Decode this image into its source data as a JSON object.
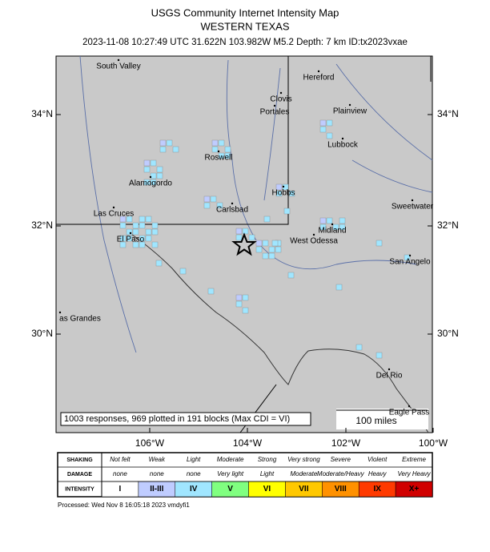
{
  "header": {
    "title": "USGS Community Internet Intensity Map",
    "subtitle": "WESTERN TEXAS",
    "event": "2023-11-08 10:27:49 UTC 31.622N 103.982W M5.2 Depth: 7 km ID:tx2023vxae"
  },
  "map": {
    "lat_labels": [
      "34°N",
      "32°N",
      "30°N"
    ],
    "lon_labels": [
      "106°W",
      "104°W",
      "102°W",
      "100°W"
    ],
    "places": [
      "South Valley",
      "Hereford",
      "Clovis",
      "Portales",
      "Plainview",
      "Lubbock",
      "Roswell",
      "Alamogordo",
      "Hobbs",
      "Sweetwater",
      "Carlsbad",
      "Las Cruces",
      "Midland",
      "El Paso",
      "West Odessa",
      "San Angelo",
      "as Grandes",
      "Del Rio",
      "Eagle Pass"
    ],
    "note": "1003 responses, 969 plotted in 191 blocks (Max CDI = VI)",
    "scale_bar": "100 miles"
  },
  "legend": {
    "rows": [
      {
        "label": "SHAKING",
        "cells": [
          "Not felt",
          "Weak",
          "Light",
          "Moderate",
          "Strong",
          "Very strong",
          "Severe",
          "Violent",
          "Extreme"
        ]
      },
      {
        "label": "DAMAGE",
        "cells": [
          "none",
          "none",
          "none",
          "Very light",
          "Light",
          "Moderate",
          "Moderate/Heavy",
          "Heavy",
          "Very Heavy"
        ]
      },
      {
        "label": "INTENSITY",
        "cells": [
          "I",
          "II-III",
          "IV",
          "V",
          "VI",
          "VII",
          "VIII",
          "IX",
          "X+"
        ]
      }
    ]
  },
  "footer": "Processed: Wed Nov  8 16:05:18 2023 vmdyfi1"
}
